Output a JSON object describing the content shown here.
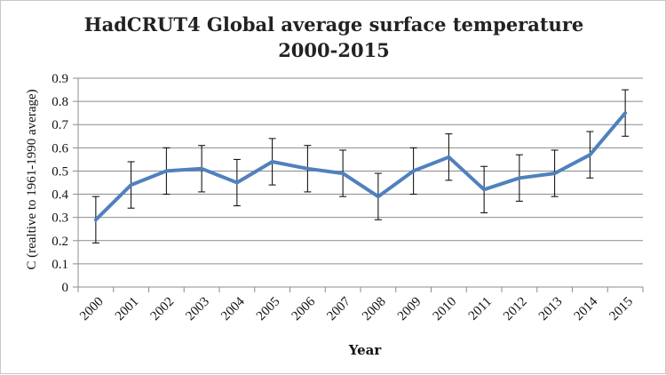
{
  "chart_data": {
    "type": "line",
    "title": "HadCRUT4 Global average surface temperature 2000-2015",
    "title_lines": [
      "HadCRUT4 Global average surface temperature",
      "2000-2015"
    ],
    "xlabel": "Year",
    "ylabel": "C (realtive to 1961-1990 average)",
    "x": [
      "2000",
      "2001",
      "2002",
      "2003",
      "2004",
      "2005",
      "2006",
      "2007",
      "2008",
      "2009",
      "2010",
      "2011",
      "2012",
      "2013",
      "2014",
      "2015"
    ],
    "series": [
      {
        "values": [
          0.29,
          0.44,
          0.5,
          0.51,
          0.45,
          0.54,
          0.51,
          0.49,
          0.39,
          0.5,
          0.56,
          0.42,
          0.47,
          0.49,
          0.57,
          0.75
        ],
        "error": 0.1,
        "color": "#4f81bd"
      }
    ],
    "ylim": [
      0,
      0.9
    ],
    "yticks": [
      "0",
      "0.1",
      "0.2",
      "0.3",
      "0.4",
      "0.5",
      "0.6",
      "0.7",
      "0.8",
      "0.9"
    ],
    "grid": true,
    "legend": "none"
  },
  "colors": {
    "line": "#4f81bd",
    "grid": "#8c8c8c",
    "axis": "#8c8c8c",
    "error_bar": "#000000"
  }
}
